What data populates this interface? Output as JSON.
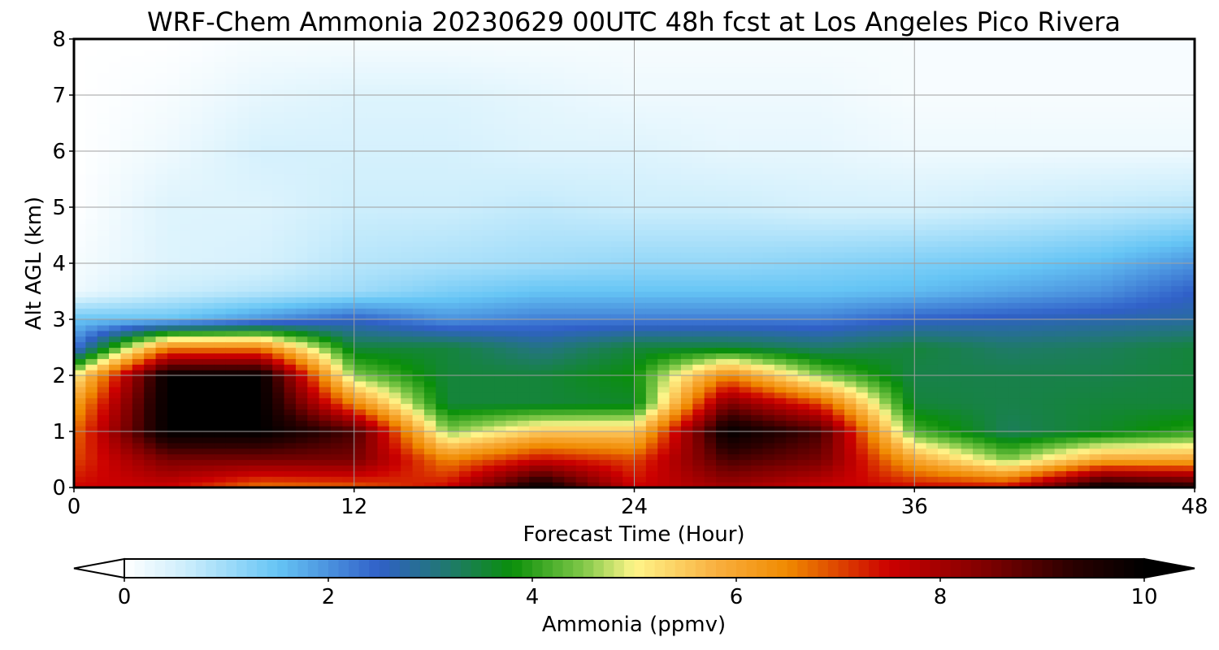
{
  "chart_data": {
    "type": "heatmap",
    "title": "WRF-Chem Ammonia  20230629 00UTC 48h fcst at Los Angeles Pico Rivera",
    "xlabel": "Forecast Time (Hour)",
    "ylabel": "Alt AGL (km)",
    "xlim": [
      0,
      48
    ],
    "ylim": [
      0,
      8
    ],
    "x_ticks": [
      0,
      12,
      24,
      36,
      48
    ],
    "y_ticks": [
      0,
      1,
      2,
      3,
      4,
      5,
      6,
      7,
      8
    ],
    "grid": true,
    "colorbar": {
      "label": "Ammonia  (ppmv)",
      "min": 0,
      "max": 10,
      "ticks": [
        0,
        2,
        4,
        6,
        8,
        10
      ],
      "extend": "both",
      "orientation": "horizontal",
      "colors": [
        {
          "v": 0.0,
          "c": "#ffffff"
        },
        {
          "v": 0.6,
          "c": "#cdeefc"
        },
        {
          "v": 1.5,
          "c": "#66c5f5"
        },
        {
          "v": 2.5,
          "c": "#3060c8"
        },
        {
          "v": 3.2,
          "c": "#1f7a6a"
        },
        {
          "v": 3.8,
          "c": "#0a8f0a"
        },
        {
          "v": 4.5,
          "c": "#80c848"
        },
        {
          "v": 5.0,
          "c": "#fff58a"
        },
        {
          "v": 5.8,
          "c": "#f9b040"
        },
        {
          "v": 6.5,
          "c": "#f08a00"
        },
        {
          "v": 7.5,
          "c": "#cc0000"
        },
        {
          "v": 8.5,
          "c": "#7a0000"
        },
        {
          "v": 9.3,
          "c": "#2a0000"
        },
        {
          "v": 10.0,
          "c": "#000000"
        }
      ]
    },
    "series": [
      {
        "name": "",
        "x": 0,
        "altitudes_km": [
          0,
          0.5,
          1,
          1.5,
          2,
          2.5,
          3,
          3.5,
          4,
          5,
          6,
          7,
          8
        ],
        "values": [
          7.5,
          7.0,
          6.7,
          6.1,
          5.0,
          2.2,
          1.5,
          0.2,
          0.1,
          0,
          0,
          0,
          0
        ]
      },
      {
        "name": "",
        "x": 4,
        "altitudes_km": [
          0,
          0.5,
          1,
          1.5,
          2,
          2.5,
          3,
          3.5,
          4,
          5,
          6,
          7,
          8
        ],
        "values": [
          7.5,
          8.5,
          10.0,
          10.0,
          10.0,
          6.5,
          1.5,
          0.6,
          0.4,
          0.4,
          0.2,
          0.1,
          0
        ]
      },
      {
        "name": "",
        "x": 8,
        "altitudes_km": [
          0,
          0.5,
          1,
          1.5,
          2,
          2.5,
          3,
          3.5,
          4,
          5,
          6,
          7,
          8
        ],
        "values": [
          6.6,
          8.5,
          10.0,
          10.0,
          10.0,
          6.5,
          2.0,
          0.8,
          0.5,
          0.4,
          0.5,
          0.3,
          0.1
        ]
      },
      {
        "name": "",
        "x": 12,
        "altitudes_km": [
          0,
          0.5,
          1,
          1.5,
          2,
          2.5,
          3,
          3.5,
          4,
          5,
          6,
          7,
          8
        ],
        "values": [
          6.8,
          8.5,
          9.0,
          6.5,
          4.5,
          3.5,
          2.5,
          1.0,
          0.8,
          0.6,
          0.5,
          0.4,
          0.1
        ]
      },
      {
        "name": "",
        "x": 16,
        "altitudes_km": [
          0,
          0.5,
          1,
          1.5,
          2,
          2.5,
          3,
          3.5,
          4,
          5,
          6,
          7,
          8
        ],
        "values": [
          7.5,
          6.5,
          4.5,
          3.5,
          3.5,
          3.5,
          2.0,
          1.3,
          0.9,
          0.6,
          0.5,
          0.4,
          0.1
        ]
      },
      {
        "name": "",
        "x": 20,
        "altitudes_km": [
          0,
          0.5,
          1,
          1.5,
          2,
          2.5,
          3,
          3.5,
          4,
          5,
          6,
          7,
          8
        ],
        "values": [
          10.0,
          7.5,
          5.5,
          3.5,
          3.5,
          3.0,
          2.2,
          1.5,
          1.0,
          0.7,
          0.4,
          0.3,
          0.1
        ]
      },
      {
        "name": "",
        "x": 24,
        "altitudes_km": [
          0,
          0.5,
          1,
          1.5,
          2,
          2.5,
          3,
          3.5,
          4,
          5,
          6,
          7,
          8
        ],
        "values": [
          7.5,
          7.0,
          5.5,
          3.6,
          3.8,
          3.5,
          2.2,
          1.5,
          1.1,
          0.6,
          0.4,
          0.2,
          0.1
        ]
      },
      {
        "name": "",
        "x": 28,
        "altitudes_km": [
          0,
          0.5,
          1,
          1.5,
          2,
          2.5,
          3,
          3.5,
          4,
          5,
          6,
          7,
          8
        ],
        "values": [
          8.0,
          9.0,
          10.0,
          8.5,
          6.5,
          3.5,
          2.2,
          1.5,
          1.1,
          0.6,
          0.3,
          0.2,
          0.1
        ]
      },
      {
        "name": "",
        "x": 32,
        "altitudes_km": [
          0,
          0.5,
          1,
          1.5,
          2,
          2.5,
          3,
          3.5,
          4,
          5,
          6,
          7,
          8
        ],
        "values": [
          7.5,
          8.5,
          9.0,
          7.0,
          4.5,
          3.2,
          2.2,
          1.5,
          1.2,
          0.5,
          0.3,
          0.2,
          0.1
        ]
      },
      {
        "name": "",
        "x": 36,
        "altitudes_km": [
          0,
          0.5,
          1,
          1.5,
          2,
          2.5,
          3,
          3.5,
          4,
          5,
          6,
          7,
          8
        ],
        "values": [
          7.5,
          6.0,
          4.2,
          3.5,
          3.4,
          3.5,
          2.5,
          1.6,
          1.3,
          0.5,
          0.2,
          0.1,
          0.1
        ]
      },
      {
        "name": "",
        "x": 40,
        "altitudes_km": [
          0,
          0.5,
          1,
          1.5,
          2,
          2.5,
          3,
          3.5,
          4,
          5,
          6,
          7,
          8
        ],
        "values": [
          7.5,
          4.5,
          3.3,
          3.4,
          3.4,
          3.2,
          2.6,
          1.8,
          1.4,
          0.6,
          0.2,
          0.1,
          0.1
        ]
      },
      {
        "name": "",
        "x": 44,
        "altitudes_km": [
          0,
          0.5,
          1,
          1.5,
          2,
          2.5,
          3,
          3.5,
          4,
          5,
          6,
          7,
          8
        ],
        "values": [
          10.0,
          6.0,
          3.6,
          3.5,
          3.4,
          3.3,
          2.7,
          2.0,
          1.6,
          0.7,
          0.2,
          0.1,
          0.1
        ]
      },
      {
        "name": "",
        "x": 48,
        "altitudes_km": [
          0,
          0.5,
          1,
          1.5,
          2,
          2.5,
          3,
          3.5,
          4,
          5,
          6,
          7,
          8
        ],
        "values": [
          9.5,
          6.0,
          4.0,
          3.5,
          3.5,
          3.5,
          2.8,
          2.5,
          2.0,
          0.8,
          0.2,
          0.1,
          0.1
        ]
      }
    ]
  }
}
